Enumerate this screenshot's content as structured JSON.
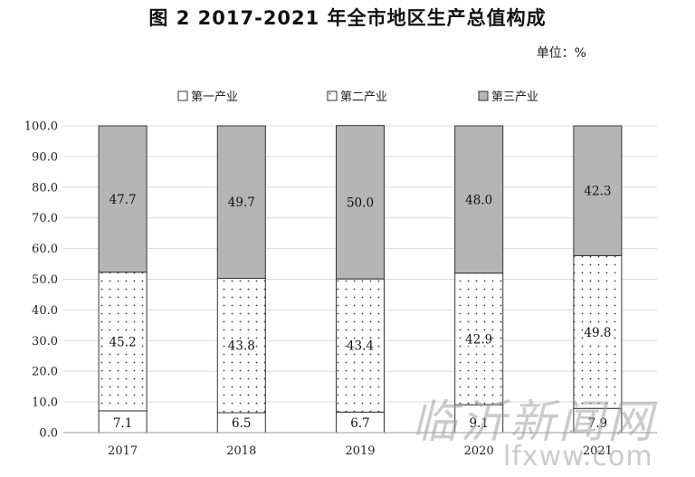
{
  "title": "图 2   2017-2021 年全市地区生产总值构成",
  "unit": "单位：%",
  "colors": {
    "primary_fill": "#ffffff",
    "secondary_fill": "#ffffff",
    "tertiary_fill": "#b5b5b5",
    "gridline": "#d9d9d9",
    "bar_stroke": "#333333"
  },
  "chart_data": {
    "type": "bar",
    "stacked": true,
    "categories": [
      "2017",
      "2018",
      "2019",
      "2020",
      "2021"
    ],
    "series": [
      {
        "name": "第一产业",
        "values": [
          7.1,
          6.5,
          6.7,
          9.1,
          7.9
        ],
        "pattern": "solid-white"
      },
      {
        "name": "第二产业",
        "values": [
          45.2,
          43.8,
          43.4,
          42.9,
          49.8
        ],
        "pattern": "dotted"
      },
      {
        "name": "第三产业",
        "values": [
          47.7,
          49.7,
          50.0,
          48.0,
          42.3
        ],
        "pattern": "solid-gray"
      }
    ],
    "ylim": [
      0,
      100
    ],
    "yticks": [
      "0.0",
      "10.0",
      "20.0",
      "30.0",
      "40.0",
      "50.0",
      "60.0",
      "70.0",
      "80.0",
      "90.0",
      "100.0"
    ],
    "grid": true,
    "legend": "top"
  },
  "watermark": {
    "main": "临沂新闻网",
    "site": "lfxww.com"
  }
}
